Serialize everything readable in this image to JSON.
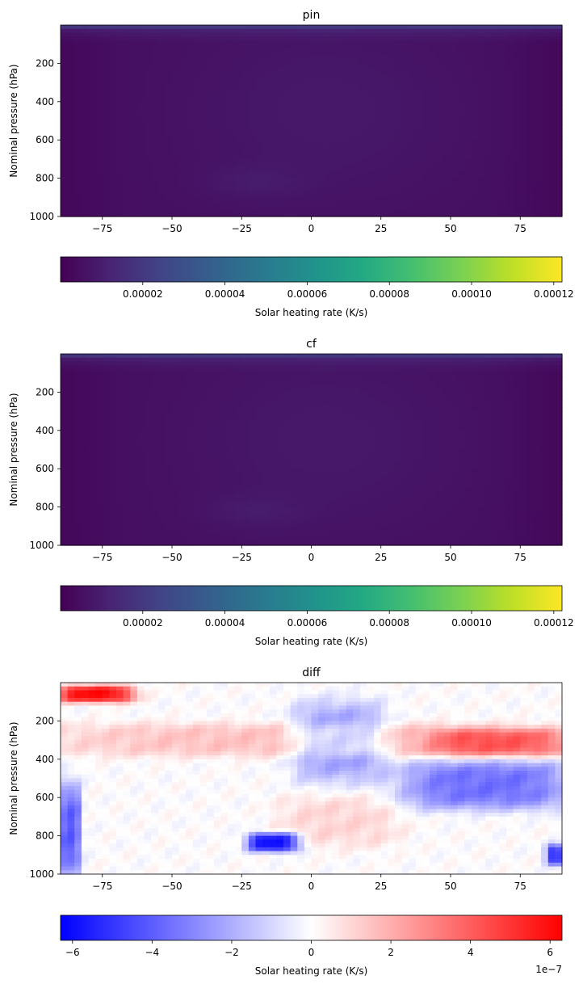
{
  "chart_data": [
    {
      "type": "heatmap",
      "title": "pin",
      "xlabel": "",
      "ylabel": "Nominal pressure (hPa)",
      "xlim": [
        -90,
        90
      ],
      "ylim": [
        1000,
        0
      ],
      "xticks": [
        "−75",
        "−50",
        "−25",
        "0",
        "25",
        "50",
        "75"
      ],
      "xtick_values": [
        -75,
        -50,
        -25,
        0,
        25,
        50,
        75
      ],
      "yticks": [
        "200",
        "400",
        "600",
        "800",
        "1000"
      ],
      "ytick_values": [
        200,
        400,
        600,
        800,
        1000
      ],
      "colormap": "viridis",
      "colorbar": {
        "label": "Solar heating rate (K/s)",
        "range": [
          0,
          0.000122
        ],
        "ticks": [
          "0.00002",
          "0.00004",
          "0.00006",
          "0.00008",
          "0.00010",
          "0.00012"
        ],
        "tick_values": [
          2e-05,
          4e-05,
          6e-05,
          8e-05,
          0.0001,
          0.00012
        ]
      },
      "field": {
        "top_band_value": 3.5e-05,
        "near_top_value": 1.2e-05,
        "tropical_mid_value": 8e-06,
        "polar_value": 2e-06,
        "background_value": 5e-06
      }
    },
    {
      "type": "heatmap",
      "title": "cf",
      "xlabel": "",
      "ylabel": "Nominal pressure (hPa)",
      "xlim": [
        -90,
        90
      ],
      "ylim": [
        1000,
        0
      ],
      "xticks": [
        "−75",
        "−50",
        "−25",
        "0",
        "25",
        "50",
        "75"
      ],
      "xtick_values": [
        -75,
        -50,
        -25,
        0,
        25,
        50,
        75
      ],
      "yticks": [
        "200",
        "400",
        "600",
        "800",
        "1000"
      ],
      "ytick_values": [
        200,
        400,
        600,
        800,
        1000
      ],
      "colormap": "viridis",
      "colorbar": {
        "label": "Solar heating rate (K/s)",
        "range": [
          0,
          0.000122
        ],
        "ticks": [
          "0.00002",
          "0.00004",
          "0.00006",
          "0.00008",
          "0.00010",
          "0.00012"
        ],
        "tick_values": [
          2e-05,
          4e-05,
          6e-05,
          8e-05,
          0.0001,
          0.00012
        ]
      },
      "field": {
        "top_band_value": 3.5e-05,
        "near_top_value": 1.2e-05,
        "tropical_mid_value": 8e-06,
        "polar_value": 2e-06,
        "background_value": 5e-06
      }
    },
    {
      "type": "heatmap",
      "title": "diff",
      "xlabel": "",
      "ylabel": "Nominal pressure (hPa)",
      "xlim": [
        -90,
        90
      ],
      "ylim": [
        1000,
        0
      ],
      "xticks": [
        "−75",
        "−50",
        "−25",
        "0",
        "25",
        "50",
        "75"
      ],
      "xtick_values": [
        -75,
        -50,
        -25,
        0,
        25,
        50,
        75
      ],
      "yticks": [
        "200",
        "400",
        "600",
        "800",
        "1000"
      ],
      "ytick_values": [
        200,
        400,
        600,
        800,
        1000
      ],
      "colormap": "bwr",
      "colorbar": {
        "label": "Solar heating rate (K/s)",
        "range": [
          -6.3e-07,
          6.3e-07
        ],
        "ticks": [
          "−6",
          "−4",
          "−2",
          "0",
          "2",
          "4",
          "6"
        ],
        "tick_values": [
          -6e-07,
          -4e-07,
          -2e-07,
          0,
          2e-07,
          4e-07,
          6e-07
        ],
        "offset_text": "1e−7"
      },
      "features": [
        {
          "lat": [
            -90,
            -65
          ],
          "p": [
            20,
            100
          ],
          "value": 6e-07
        },
        {
          "lat": [
            -90,
            90
          ],
          "p": [
            220,
            380
          ],
          "value": 1.5e-07
        },
        {
          "lat": [
            45,
            90
          ],
          "p": [
            250,
            380
          ],
          "value": 3e-07
        },
        {
          "lat": [
            -5,
            25
          ],
          "p": [
            120,
            500
          ],
          "value": -2.5e-07
        },
        {
          "lat": [
            35,
            90
          ],
          "p": [
            420,
            650
          ],
          "value": -3.5e-07
        },
        {
          "lat": [
            -22,
            -5
          ],
          "p": [
            790,
            880
          ],
          "value": -6e-07
        },
        {
          "lat": [
            -90,
            -83
          ],
          "p": [
            550,
            1000
          ],
          "value": -4e-07
        },
        {
          "lat": [
            85,
            90
          ],
          "p": [
            850,
            950
          ],
          "value": -5e-07
        },
        {
          "lat": [
            -10,
            30
          ],
          "p": [
            600,
            850
          ],
          "value": 1e-07
        }
      ]
    }
  ]
}
